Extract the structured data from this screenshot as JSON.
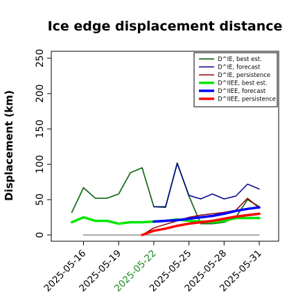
{
  "chart_data": {
    "type": "line",
    "title": "Ice edge displacement distance",
    "ylabel": "Displacement (km)",
    "xlabel": "",
    "ylim": [
      0,
      250
    ],
    "yticks": [
      0,
      50,
      100,
      150,
      200,
      250
    ],
    "x_dates": [
      "2025-05-15",
      "2025-05-16",
      "2025-05-17",
      "2025-05-18",
      "2025-05-19",
      "2025-05-20",
      "2025-05-21",
      "2025-05-22",
      "2025-05-23",
      "2025-05-24",
      "2025-05-25",
      "2025-05-26",
      "2025-05-27",
      "2025-05-28",
      "2025-05-29",
      "2025-05-30",
      "2025-05-31"
    ],
    "xticks": [
      {
        "label": "2025-05-16",
        "color": "#000000"
      },
      {
        "label": "2025-05-19",
        "color": "#000000"
      },
      {
        "label": "2025-05-22",
        "color": "#1a8a1a"
      },
      {
        "label": "2025-05-25",
        "color": "#000000"
      },
      {
        "label": "2025-05-28",
        "color": "#000000"
      },
      {
        "label": "2025-05-31",
        "color": "#000000"
      }
    ],
    "grid": false,
    "legend_position": "top-right",
    "series": [
      {
        "name": "D^IE, best est.",
        "color": "#1f6e1f",
        "width": 1.8,
        "points": [
          [
            "2025-05-15",
            32
          ],
          [
            "2025-05-16",
            67
          ],
          [
            "2025-05-17",
            52
          ],
          [
            "2025-05-18",
            52
          ],
          [
            "2025-05-19",
            58
          ],
          [
            "2025-05-20",
            88
          ],
          [
            "2025-05-21",
            95
          ],
          [
            "2025-05-22",
            40
          ],
          [
            "2025-05-23",
            39
          ],
          [
            "2025-05-24",
            102
          ],
          [
            "2025-05-25",
            55
          ],
          [
            "2025-05-26",
            16
          ],
          [
            "2025-05-27",
            16
          ],
          [
            "2025-05-28",
            18
          ],
          [
            "2025-05-29",
            25
          ],
          [
            "2025-05-30",
            50
          ],
          [
            "2025-05-31",
            40
          ]
        ]
      },
      {
        "name": "D^IE, forecast",
        "color": "#00008b",
        "width": 1.5,
        "points": [
          [
            "2025-05-22",
            40
          ],
          [
            "2025-05-23",
            40
          ],
          [
            "2025-05-24",
            101
          ],
          [
            "2025-05-25",
            56
          ],
          [
            "2025-05-26",
            51
          ],
          [
            "2025-05-27",
            58
          ],
          [
            "2025-05-28",
            51
          ],
          [
            "2025-05-29",
            55
          ],
          [
            "2025-05-30",
            72
          ],
          [
            "2025-05-31",
            65
          ]
        ]
      },
      {
        "name": "D^IE, persistence",
        "color": "#8b0000",
        "width": 1.5,
        "points": [
          [
            "2025-05-21",
            0
          ],
          [
            "2025-05-22",
            10
          ],
          [
            "2025-05-23",
            15
          ],
          [
            "2025-05-24",
            20
          ],
          [
            "2025-05-25",
            25
          ],
          [
            "2025-05-26",
            28
          ],
          [
            "2025-05-27",
            30
          ],
          [
            "2025-05-28",
            32
          ],
          [
            "2025-05-29",
            35
          ],
          [
            "2025-05-30",
            52
          ],
          [
            "2025-05-31",
            38
          ]
        ]
      },
      {
        "name": "D^IIEE, best est.",
        "color": "#00e600",
        "width": 3.5,
        "points": [
          [
            "2025-05-15",
            18
          ],
          [
            "2025-05-16",
            25
          ],
          [
            "2025-05-17",
            20
          ],
          [
            "2025-05-18",
            20
          ],
          [
            "2025-05-19",
            16
          ],
          [
            "2025-05-20",
            18
          ],
          [
            "2025-05-21",
            18
          ],
          [
            "2025-05-22",
            19
          ],
          [
            "2025-05-23",
            20
          ],
          [
            "2025-05-24",
            22
          ],
          [
            "2025-05-25",
            20
          ],
          [
            "2025-05-26",
            19
          ],
          [
            "2025-05-27",
            18
          ],
          [
            "2025-05-28",
            20
          ],
          [
            "2025-05-29",
            24
          ],
          [
            "2025-05-30",
            24
          ],
          [
            "2025-05-31",
            24
          ]
        ]
      },
      {
        "name": "D^IIEE, forecast",
        "color": "#0000ff",
        "width": 3.5,
        "points": [
          [
            "2025-05-22",
            19
          ],
          [
            "2025-05-23",
            20
          ],
          [
            "2025-05-24",
            21
          ],
          [
            "2025-05-25",
            23
          ],
          [
            "2025-05-26",
            25
          ],
          [
            "2025-05-27",
            27
          ],
          [
            "2025-05-28",
            30
          ],
          [
            "2025-05-29",
            34
          ],
          [
            "2025-05-30",
            37
          ],
          [
            "2025-05-31",
            39
          ]
        ]
      },
      {
        "name": "D^IIEE, persistence",
        "color": "#ff0000",
        "width": 3.5,
        "points": [
          [
            "2025-05-21",
            0
          ],
          [
            "2025-05-22",
            6
          ],
          [
            "2025-05-23",
            9
          ],
          [
            "2025-05-24",
            13
          ],
          [
            "2025-05-25",
            16
          ],
          [
            "2025-05-26",
            18
          ],
          [
            "2025-05-27",
            20
          ],
          [
            "2025-05-28",
            23
          ],
          [
            "2025-05-29",
            26
          ],
          [
            "2025-05-30",
            28
          ],
          [
            "2025-05-31",
            30
          ]
        ]
      },
      {
        "name": "",
        "color": "#777777",
        "width": 1.2,
        "points": [
          [
            "2025-05-16",
            0
          ],
          [
            "2025-05-31",
            0
          ]
        ]
      }
    ]
  }
}
